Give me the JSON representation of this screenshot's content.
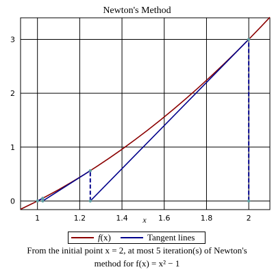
{
  "chart_data": {
    "type": "line",
    "title": "Newton's Method",
    "xlabel": "x",
    "ylabel": "",
    "xlim": [
      0.92,
      2.1
    ],
    "ylim": [
      -0.16,
      3.4
    ],
    "xticks": [
      1,
      1.2,
      1.4,
      1.6,
      1.8,
      2
    ],
    "xtick_labels": [
      "1",
      "1.2",
      "1.4",
      "1.6",
      "1.8",
      "2"
    ],
    "yticks": [
      0,
      1,
      2,
      3
    ],
    "ytick_labels": [
      "0",
      "1",
      "2",
      "3"
    ],
    "grid": true,
    "legend_position": "bottom",
    "series": [
      {
        "name": "f(x)",
        "color": "#8b0000",
        "x": [
          0.92,
          0.98,
          1.04,
          1.1,
          1.16,
          1.22,
          1.28,
          1.34,
          1.4,
          1.46,
          1.52,
          1.58,
          1.64,
          1.7,
          1.76,
          1.82,
          1.88,
          1.94,
          2.0,
          2.06,
          2.1
        ],
        "y": [
          -0.1536,
          -0.0396,
          0.0816,
          0.21,
          0.3456,
          0.4884,
          0.6384,
          0.7956,
          0.96,
          1.1316,
          1.3104,
          1.4964,
          1.6896,
          1.89,
          2.0976,
          2.3124,
          2.5344,
          2.7636,
          3.0,
          3.2436,
          3.41
        ]
      },
      {
        "name": "Tangent lines",
        "color": "#00008b",
        "tangents": [
          {
            "x": [
              1.25,
              2.0
            ],
            "y": [
              0,
              3.0
            ]
          },
          {
            "x": [
              1.025,
              1.25
            ],
            "y": [
              0,
              0.5625
            ]
          },
          {
            "x": [
              1.0003,
              1.025
            ],
            "y": [
              0,
              0.050625
            ]
          }
        ],
        "verticals": [
          {
            "x": [
              2.0,
              2.0
            ],
            "y": [
              0,
              3.0
            ]
          },
          {
            "x": [
              1.25,
              1.25
            ],
            "y": [
              0,
              0.5625
            ]
          },
          {
            "x": [
              1.025,
              1.025
            ],
            "y": [
              0,
              0.050625
            ]
          }
        ]
      }
    ],
    "iterates": {
      "x": [
        2.0,
        1.25,
        1.025,
        1.0003
      ],
      "fx": [
        3.0,
        0.5625,
        0.050625,
        0.0006
      ]
    },
    "point_color": "#5f9ea0"
  },
  "legend": {
    "f_label": "f",
    "f_arg": "(x)",
    "tangent_label": "Tangent lines"
  },
  "caption": {
    "line1": "From the initial point x = 2, at most 5 iteration(s) of Newton's",
    "line2": "method for f(x) = x² − 1"
  }
}
